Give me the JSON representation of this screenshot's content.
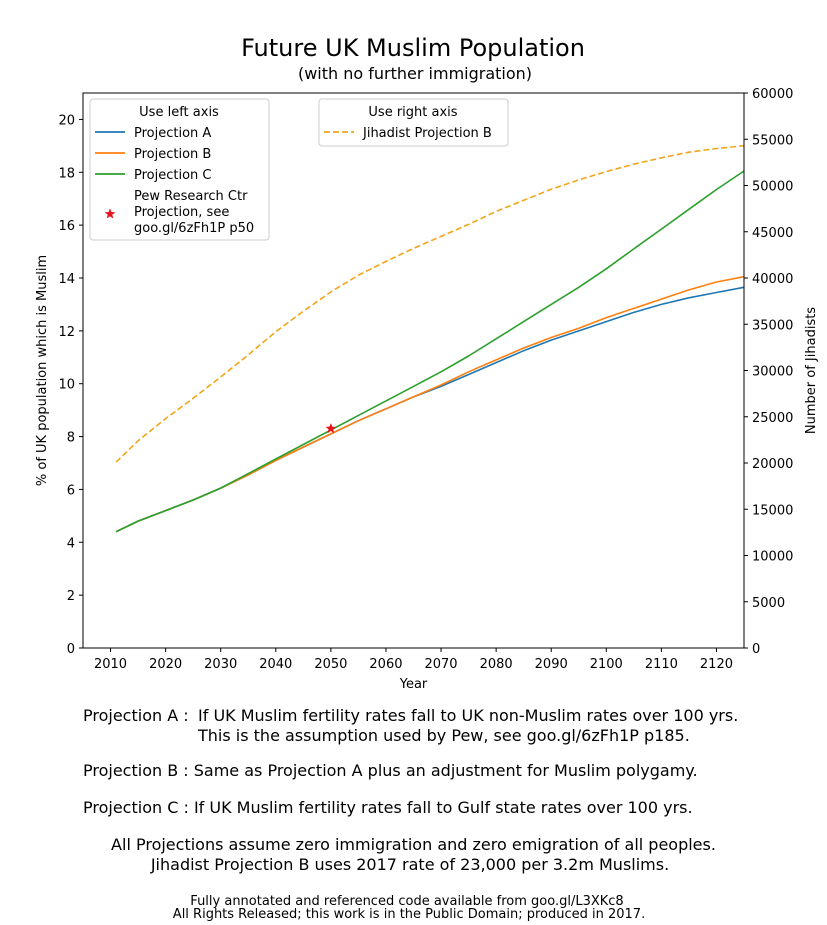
{
  "chart_data": {
    "type": "line",
    "title": "Future UK Muslim Population",
    "subtitle": "(with no further immigration)",
    "xlabel": "Year",
    "ylabel": "% of UK population which is Muslim",
    "y2label": "Number of Jihadists",
    "xlim": [
      2005,
      2125
    ],
    "ylim": [
      0,
      21
    ],
    "y2lim": [
      0,
      60000
    ],
    "xticks": [
      2010,
      2020,
      2030,
      2040,
      2050,
      2060,
      2070,
      2080,
      2090,
      2100,
      2110,
      2120
    ],
    "yticks": [
      0,
      2,
      4,
      6,
      8,
      10,
      12,
      14,
      16,
      18,
      20
    ],
    "y2ticks": [
      0,
      5000,
      10000,
      15000,
      20000,
      25000,
      30000,
      35000,
      40000,
      45000,
      50000,
      55000,
      60000
    ],
    "grid": false,
    "legend_left": {
      "title": "Use left axis",
      "placement": "top-left",
      "entries": [
        "Projection A",
        "Projection B",
        "Projection C",
        "Pew Research Ctr\nProjection, see\ngoo.gl/6zFh1P p50"
      ]
    },
    "legend_right": {
      "title": "Use right axis",
      "placement": "top-center",
      "entries": [
        "Jihadist Projection B"
      ]
    },
    "x": [
      2011,
      2015,
      2020,
      2025,
      2030,
      2035,
      2040,
      2045,
      2050,
      2055,
      2060,
      2065,
      2070,
      2075,
      2080,
      2085,
      2090,
      2095,
      2100,
      2105,
      2110,
      2115,
      2120,
      2125
    ],
    "series": [
      {
        "name": "Projection A",
        "axis": "left",
        "color": "#1f77b4",
        "style": "solid",
        "values": [
          4.4,
          4.8,
          5.2,
          5.6,
          6.05,
          6.55,
          7.1,
          7.6,
          8.1,
          8.6,
          9.05,
          9.5,
          9.9,
          10.35,
          10.8,
          11.25,
          11.65,
          12.0,
          12.35,
          12.7,
          13.0,
          13.25,
          13.45,
          13.65
        ]
      },
      {
        "name": "Projection B",
        "axis": "left",
        "color": "#ff7f0e",
        "style": "solid",
        "values": [
          4.4,
          4.8,
          5.2,
          5.6,
          6.05,
          6.55,
          7.1,
          7.6,
          8.1,
          8.6,
          9.05,
          9.5,
          9.95,
          10.45,
          10.9,
          11.35,
          11.75,
          12.1,
          12.5,
          12.85,
          13.2,
          13.55,
          13.85,
          14.05
        ]
      },
      {
        "name": "Projection C",
        "axis": "left",
        "color": "#2ca02c",
        "style": "solid",
        "values": [
          4.4,
          4.8,
          5.2,
          5.6,
          6.05,
          6.6,
          7.15,
          7.7,
          8.25,
          8.8,
          9.35,
          9.9,
          10.45,
          11.05,
          11.7,
          12.35,
          13.0,
          13.65,
          14.35,
          15.1,
          15.85,
          16.6,
          17.35,
          18.05
        ]
      },
      {
        "name": "Jihadist Projection B",
        "axis": "right",
        "color": "#f2a51a",
        "style": "dashed",
        "values": [
          20100,
          22400,
          24800,
          27000,
          29300,
          31700,
          34200,
          36400,
          38500,
          40300,
          41800,
          43200,
          44500,
          45800,
          47200,
          48400,
          49600,
          50600,
          51500,
          52300,
          53000,
          53600,
          54000,
          54300
        ]
      }
    ],
    "markers": [
      {
        "name": "Pew Research Ctr\nProjection, see\ngoo.gl/6zFh1P p50",
        "axis": "left",
        "x": 2050,
        "y": 8.3,
        "color": "#e8141c",
        "symbol": "star"
      }
    ]
  },
  "notes": {
    "a_label": "Projection A :",
    "a_text1": "If UK Muslim fertility rates fall to UK non-Muslim rates over 100 yrs.",
    "a_text2": "This is the assumption used by Pew, see goo.gl/6zFh1P p185.",
    "b_line": "Projection B : Same as Projection A plus an adjustment for Muslim polygamy.",
    "c_line": "Projection C : If UK Muslim fertility rates fall to Gulf state rates over 100 yrs.",
    "all_line1": "All Projections assume zero immigration and zero emigration of all peoples.",
    "all_line2": "Jihadist Projection B uses 2017 rate of 23,000 per 3.2m Muslims.",
    "footer1": "Fully annotated and referenced code available from goo.gl/L3XKc8",
    "footer2": "All Rights Released; this work is in the Public Domain; produced in 2017."
  }
}
